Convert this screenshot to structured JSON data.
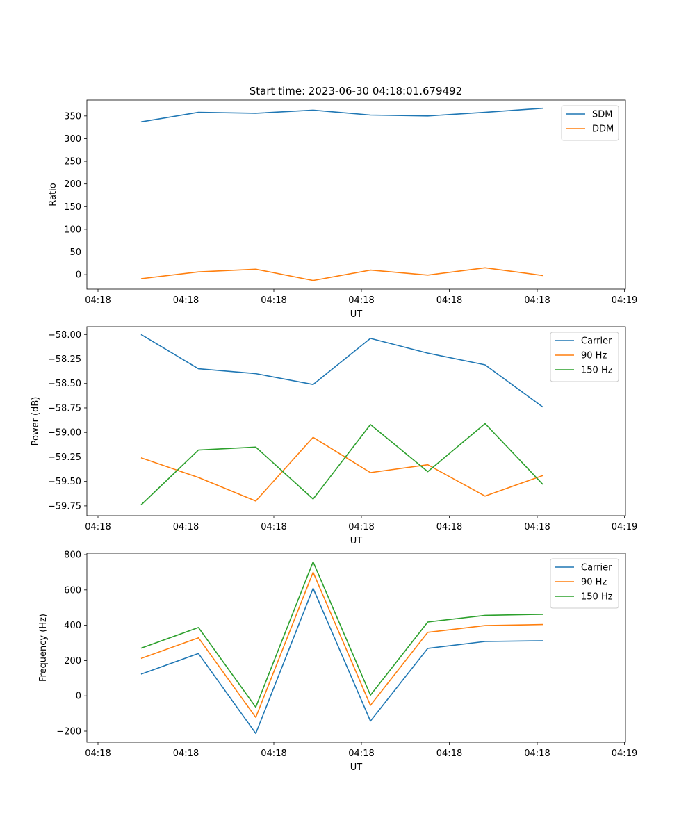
{
  "figure": {
    "title": "Start time: 2023-06-30 04:18:01.679492"
  },
  "chart_data": [
    {
      "type": "line",
      "title": "Start time: 2023-06-30 04:18:01.679492",
      "xlabel": "UT",
      "ylabel": "Ratio",
      "x_tick_labels": [
        "04:18",
        "04:18",
        "04:18",
        "04:18",
        "04:18",
        "04:18",
        "04:19"
      ],
      "y_ticks": [
        0,
        50,
        100,
        150,
        200,
        250,
        300,
        350
      ],
      "ylim": [
        -32,
        385
      ],
      "grid": false,
      "legend": "top-right",
      "series": [
        {
          "name": "SDM",
          "color": "#1f77b4",
          "values": [
            337,
            358,
            356,
            363,
            352,
            350,
            358,
            367
          ]
        },
        {
          "name": "DDM",
          "color": "#ff7f0e",
          "values": [
            -9,
            6,
            12,
            -13,
            10,
            -1,
            15,
            -2
          ]
        }
      ]
    },
    {
      "type": "line",
      "xlabel": "UT",
      "ylabel": "Power (dB)",
      "x_tick_labels": [
        "04:18",
        "04:18",
        "04:18",
        "04:18",
        "04:18",
        "04:18",
        "04:19"
      ],
      "y_ticks": [
        -59.75,
        -59.5,
        -59.25,
        -59.0,
        -58.75,
        -58.5,
        -58.25,
        -58.0
      ],
      "y_tick_labels": [
        "−59.75",
        "−59.50",
        "−59.25",
        "−59.00",
        "−58.75",
        "−58.50",
        "−58.25",
        "−58.00"
      ],
      "ylim": [
        -59.85,
        -57.92
      ],
      "grid": false,
      "legend": "top-right",
      "series": [
        {
          "name": "Carrier",
          "color": "#1f77b4",
          "values": [
            -58.0,
            -58.35,
            -58.4,
            -58.51,
            -58.04,
            -58.19,
            -58.31,
            -58.74
          ]
        },
        {
          "name": "90 Hz",
          "color": "#ff7f0e",
          "values": [
            -59.26,
            -59.46,
            -59.7,
            -59.05,
            -59.41,
            -59.33,
            -59.65,
            -59.44
          ]
        },
        {
          "name": "150 Hz",
          "color": "#2ca02c",
          "values": [
            -59.74,
            -59.18,
            -59.15,
            -59.68,
            -58.92,
            -59.4,
            -58.91,
            -59.53
          ]
        }
      ]
    },
    {
      "type": "line",
      "xlabel": "UT",
      "ylabel": "Frequency (Hz)",
      "x_tick_labels": [
        "04:18",
        "04:18",
        "04:18",
        "04:18",
        "04:18",
        "04:18",
        "04:19"
      ],
      "y_ticks": [
        -200,
        0,
        200,
        400,
        600,
        800
      ],
      "y_tick_labels": [
        "−200",
        "0",
        "200",
        "400",
        "600",
        "800"
      ],
      "ylim": [
        -263,
        808
      ],
      "grid": false,
      "legend": "top-right",
      "series": [
        {
          "name": "Carrier",
          "color": "#1f77b4",
          "values": [
            123,
            240,
            -213,
            609,
            -143,
            269,
            308,
            312
          ]
        },
        {
          "name": "90 Hz",
          "color": "#ff7f0e",
          "values": [
            212,
            329,
            -122,
            700,
            -54,
            360,
            398,
            404
          ]
        },
        {
          "name": "150 Hz",
          "color": "#2ca02c",
          "values": [
            270,
            387,
            -64,
            759,
            4,
            418,
            456,
            462
          ]
        }
      ]
    }
  ]
}
